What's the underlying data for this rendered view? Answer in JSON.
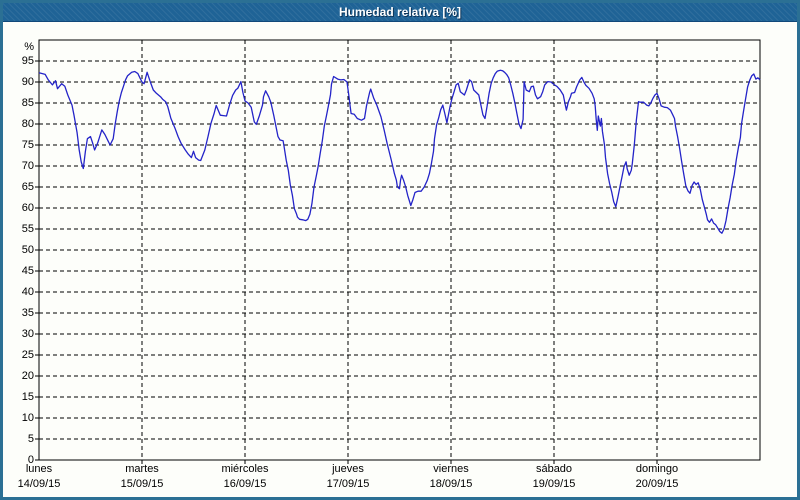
{
  "window": {
    "title": "Humedad relativa [%]"
  },
  "colors": {
    "frame": "#2b7094",
    "titlebar_bg": "#1f6396",
    "titlebar_text": "#ffffff",
    "content_bg": "#fdfefa",
    "grid": "#000000",
    "axis": "#000000",
    "line": "#2424c8",
    "label_text": "#000000"
  },
  "chart_data": {
    "type": "line",
    "title": "Humedad relativa [%]",
    "y_unit_label": "%",
    "ylabel": "Humedad relativa (%)",
    "xlabel": "",
    "ylim": [
      0,
      100
    ],
    "y_ticks": [
      0,
      5,
      10,
      15,
      20,
      25,
      30,
      35,
      40,
      45,
      50,
      55,
      60,
      65,
      70,
      75,
      80,
      85,
      90,
      95
    ],
    "grid": "dashed",
    "legend_position": "none",
    "x_range_days": [
      0,
      7
    ],
    "x_days": [
      {
        "name": "lunes",
        "date": "14/09/15"
      },
      {
        "name": "martes",
        "date": "15/09/15"
      },
      {
        "name": "miércoles",
        "date": "16/09/15"
      },
      {
        "name": "jueves",
        "date": "17/09/15"
      },
      {
        "name": "viernes",
        "date": "18/09/15"
      },
      {
        "name": "sábado",
        "date": "19/09/15"
      },
      {
        "name": "domingo",
        "date": "20/09/15"
      }
    ],
    "series": [
      {
        "name": "Humedad relativa [%]",
        "color": "#2424c8",
        "points_day_value": [
          [
            0,
            92.2
          ],
          [
            0.06,
            91.8
          ],
          [
            0.09,
            90.5
          ],
          [
            0.13,
            89.3
          ],
          [
            0.16,
            90.3
          ],
          [
            0.18,
            88.4
          ],
          [
            0.22,
            89.6
          ],
          [
            0.25,
            89
          ],
          [
            0.28,
            86.9
          ],
          [
            0.32,
            84.5
          ],
          [
            0.34,
            82.1
          ],
          [
            0.37,
            77.9
          ],
          [
            0.39,
            73.8
          ],
          [
            0.41,
            71
          ],
          [
            0.43,
            69.4
          ],
          [
            0.45,
            73.5
          ],
          [
            0.47,
            76.5
          ],
          [
            0.5,
            77
          ],
          [
            0.52,
            75.5
          ],
          [
            0.54,
            73.8
          ],
          [
            0.57,
            75.5
          ],
          [
            0.61,
            78.6
          ],
          [
            0.64,
            77.5
          ],
          [
            0.67,
            76
          ],
          [
            0.69,
            75
          ],
          [
            0.72,
            76.5
          ],
          [
            0.74,
            80
          ],
          [
            0.76,
            83
          ],
          [
            0.78,
            85.5
          ],
          [
            0.8,
            87.5
          ],
          [
            0.82,
            89
          ],
          [
            0.84,
            90.5
          ],
          [
            0.86,
            91.5
          ],
          [
            0.9,
            92.3
          ],
          [
            0.93,
            92.5
          ],
          [
            0.96,
            92
          ],
          [
            0.98,
            91
          ],
          [
            1,
            90
          ],
          [
            1.02,
            89.6
          ],
          [
            1.05,
            92.3
          ],
          [
            1.08,
            90.1
          ],
          [
            1.11,
            88.1
          ],
          [
            1.14,
            87.3
          ],
          [
            1.18,
            86.5
          ],
          [
            1.2,
            85.9
          ],
          [
            1.23,
            85.3
          ],
          [
            1.25,
            84.1
          ],
          [
            1.28,
            81.4
          ],
          [
            1.32,
            79
          ],
          [
            1.35,
            77
          ],
          [
            1.38,
            75.4
          ],
          [
            1.42,
            73.8
          ],
          [
            1.45,
            72.8
          ],
          [
            1.48,
            72
          ],
          [
            1.5,
            73.5
          ],
          [
            1.52,
            72
          ],
          [
            1.55,
            71.4
          ],
          [
            1.57,
            71.3
          ],
          [
            1.61,
            73.8
          ],
          [
            1.64,
            76.9
          ],
          [
            1.67,
            80.2
          ],
          [
            1.7,
            82.5
          ],
          [
            1.72,
            84.4
          ],
          [
            1.76,
            82.1
          ],
          [
            1.79,
            82
          ],
          [
            1.82,
            81.9
          ],
          [
            1.85,
            84.6
          ],
          [
            1.88,
            86.8
          ],
          [
            1.91,
            88.1
          ],
          [
            1.93,
            88.5
          ],
          [
            1.96,
            90.1
          ],
          [
            1.98,
            87.5
          ],
          [
            2,
            85.5
          ],
          [
            2.03,
            85
          ],
          [
            2.06,
            84
          ],
          [
            2.09,
            80.5
          ],
          [
            2.11,
            79.9
          ],
          [
            2.14,
            82
          ],
          [
            2.17,
            84.5
          ],
          [
            2.18,
            86.5
          ],
          [
            2.2,
            87.9
          ],
          [
            2.23,
            86.5
          ],
          [
            2.25,
            85.2
          ],
          [
            2.28,
            82
          ],
          [
            2.3,
            79.5
          ],
          [
            2.32,
            77
          ],
          [
            2.34,
            76.2
          ],
          [
            2.37,
            76
          ],
          [
            2.38,
            74.6
          ],
          [
            2.4,
            71.4
          ],
          [
            2.42,
            69
          ],
          [
            2.44,
            65.5
          ],
          [
            2.46,
            63
          ],
          [
            2.48,
            59.8
          ],
          [
            2.5,
            58.6
          ],
          [
            2.51,
            57.8
          ],
          [
            2.53,
            57.3
          ],
          [
            2.56,
            57.2
          ],
          [
            2.59,
            57
          ],
          [
            2.61,
            57.3
          ],
          [
            2.63,
            58.5
          ],
          [
            2.65,
            61
          ],
          [
            2.67,
            65
          ],
          [
            2.69,
            67.4
          ],
          [
            2.71,
            69.8
          ],
          [
            2.73,
            73
          ],
          [
            2.75,
            76
          ],
          [
            2.77,
            79.5
          ],
          [
            2.79,
            81.9
          ],
          [
            2.81,
            84.3
          ],
          [
            2.83,
            87
          ],
          [
            2.84,
            89.5
          ],
          [
            2.86,
            91.3
          ],
          [
            2.9,
            90.7
          ],
          [
            2.93,
            90.5
          ],
          [
            2.96,
            90.6
          ],
          [
            2.99,
            90
          ],
          [
            3.01,
            86.5
          ],
          [
            3.02,
            84.3
          ],
          [
            3.03,
            82.5
          ],
          [
            3.06,
            82.3
          ],
          [
            3.09,
            81.3
          ],
          [
            3.13,
            80.9
          ],
          [
            3.16,
            81.3
          ],
          [
            3.18,
            84.3
          ],
          [
            3.21,
            87.5
          ],
          [
            3.22,
            88.3
          ],
          [
            3.25,
            86.1
          ],
          [
            3.28,
            84.5
          ],
          [
            3.32,
            81.7
          ],
          [
            3.35,
            78.6
          ],
          [
            3.38,
            75.4
          ],
          [
            3.42,
            71.4
          ],
          [
            3.45,
            68.2
          ],
          [
            3.47,
            66.6
          ],
          [
            3.48,
            65
          ],
          [
            3.5,
            64.6
          ],
          [
            3.51,
            66.6
          ],
          [
            3.52,
            67.8
          ],
          [
            3.54,
            66.6
          ],
          [
            3.56,
            65
          ],
          [
            3.58,
            63
          ],
          [
            3.61,
            60.6
          ],
          [
            3.63,
            62
          ],
          [
            3.65,
            63.7
          ],
          [
            3.68,
            64
          ],
          [
            3.71,
            64
          ],
          [
            3.74,
            65
          ],
          [
            3.77,
            66.6
          ],
          [
            3.79,
            68.2
          ],
          [
            3.81,
            70.6
          ],
          [
            3.83,
            73.5
          ],
          [
            3.84,
            76.5
          ],
          [
            3.86,
            79.8
          ],
          [
            3.88,
            81.4
          ],
          [
            3.9,
            83.4
          ],
          [
            3.92,
            84.5
          ],
          [
            3.94,
            82.5
          ],
          [
            3.96,
            80.3
          ],
          [
            3.99,
            84.1
          ],
          [
            4.01,
            86.1
          ],
          [
            4.03,
            87.7
          ],
          [
            4.05,
            89.3
          ],
          [
            4.07,
            89.7
          ],
          [
            4.09,
            87.7
          ],
          [
            4.13,
            86.9
          ],
          [
            4.15,
            88.1
          ],
          [
            4.18,
            90.5
          ],
          [
            4.2,
            90.1
          ],
          [
            4.22,
            88.1
          ],
          [
            4.25,
            87.4
          ],
          [
            4.27,
            86.9
          ],
          [
            4.29,
            84.5
          ],
          [
            4.31,
            82.2
          ],
          [
            4.33,
            81.3
          ],
          [
            4.35,
            84.1
          ],
          [
            4.37,
            87.3
          ],
          [
            4.39,
            89.7
          ],
          [
            4.41,
            91
          ],
          [
            4.43,
            92
          ],
          [
            4.45,
            92.6
          ],
          [
            4.48,
            92.8
          ],
          [
            4.5,
            92.7
          ],
          [
            4.52,
            92.3
          ],
          [
            4.54,
            91.8
          ],
          [
            4.56,
            91
          ],
          [
            4.58,
            89.3
          ],
          [
            4.6,
            87.3
          ],
          [
            4.62,
            85
          ],
          [
            4.64,
            82.5
          ],
          [
            4.66,
            80
          ],
          [
            4.68,
            78.9
          ],
          [
            4.7,
            81.1
          ],
          [
            4.71,
            90.1
          ],
          [
            4.73,
            88.1
          ],
          [
            4.76,
            87.7
          ],
          [
            4.78,
            88.9
          ],
          [
            4.8,
            89
          ],
          [
            4.82,
            86.9
          ],
          [
            4.84,
            86
          ],
          [
            4.87,
            86.5
          ],
          [
            4.89,
            87.7
          ],
          [
            4.91,
            89.3
          ],
          [
            4.94,
            90.1
          ],
          [
            4.97,
            90
          ],
          [
            5,
            89.4
          ],
          [
            5.03,
            88.9
          ],
          [
            5.06,
            88.1
          ],
          [
            5.09,
            86.9
          ],
          [
            5.11,
            84.5
          ],
          [
            5.12,
            83.3
          ],
          [
            5.14,
            85.3
          ],
          [
            5.16,
            86.5
          ],
          [
            5.17,
            87.3
          ],
          [
            5.2,
            87.5
          ],
          [
            5.22,
            88.9
          ],
          [
            5.25,
            90.5
          ],
          [
            5.27,
            91.1
          ],
          [
            5.29,
            90
          ],
          [
            5.31,
            89.2
          ],
          [
            5.34,
            88.5
          ],
          [
            5.37,
            87.3
          ],
          [
            5.39,
            86
          ],
          [
            5.4,
            84.3
          ],
          [
            5.41,
            81.1
          ],
          [
            5.42,
            78.5
          ],
          [
            5.43,
            81.9
          ],
          [
            5.45,
            79.5
          ],
          [
            5.46,
            81.3
          ],
          [
            5.47,
            78.3
          ],
          [
            5.49,
            75
          ],
          [
            5.5,
            72
          ],
          [
            5.52,
            68.2
          ],
          [
            5.54,
            65.8
          ],
          [
            5.56,
            63.8
          ],
          [
            5.58,
            61.5
          ],
          [
            5.6,
            60.3
          ],
          [
            5.62,
            62.6
          ],
          [
            5.64,
            65
          ],
          [
            5.66,
            67.4
          ],
          [
            5.68,
            69.8
          ],
          [
            5.7,
            71
          ],
          [
            5.71,
            69.4
          ],
          [
            5.73,
            67.8
          ],
          [
            5.75,
            69
          ],
          [
            5.76,
            70.6
          ],
          [
            5.78,
            75
          ],
          [
            5.8,
            81
          ],
          [
            5.82,
            85.3
          ],
          [
            5.84,
            85.2
          ],
          [
            5.87,
            85.2
          ],
          [
            5.9,
            84.5
          ],
          [
            5.92,
            84.3
          ],
          [
            5.94,
            85
          ],
          [
            5.96,
            86.1
          ],
          [
            5.98,
            86.9
          ],
          [
            6,
            87.3
          ],
          [
            6.02,
            86
          ],
          [
            6.04,
            84.3
          ],
          [
            6.07,
            84
          ],
          [
            6.1,
            83.9
          ],
          [
            6.13,
            83.3
          ],
          [
            6.15,
            82.3
          ],
          [
            6.17,
            81.3
          ],
          [
            6.18,
            79.5
          ],
          [
            6.2,
            77
          ],
          [
            6.22,
            74.1
          ],
          [
            6.24,
            71
          ],
          [
            6.26,
            68
          ],
          [
            6.28,
            65.3
          ],
          [
            6.3,
            64.1
          ],
          [
            6.32,
            63.5
          ],
          [
            6.34,
            65.3
          ],
          [
            6.36,
            66.2
          ],
          [
            6.38,
            65.6
          ],
          [
            6.4,
            66
          ],
          [
            6.42,
            64.4
          ],
          [
            6.44,
            62
          ],
          [
            6.46,
            60.2
          ],
          [
            6.48,
            58.4
          ],
          [
            6.49,
            57.2
          ],
          [
            6.51,
            56.6
          ],
          [
            6.53,
            57.4
          ],
          [
            6.55,
            56.4
          ],
          [
            6.57,
            56
          ],
          [
            6.59,
            55.2
          ],
          [
            6.61,
            54.4
          ],
          [
            6.63,
            54
          ],
          [
            6.65,
            55
          ],
          [
            6.67,
            57
          ],
          [
            6.69,
            60
          ],
          [
            6.71,
            62.4
          ],
          [
            6.73,
            65.5
          ],
          [
            6.75,
            68
          ],
          [
            6.77,
            71.5
          ],
          [
            6.79,
            74.4
          ],
          [
            6.81,
            76.8
          ],
          [
            6.82,
            80
          ],
          [
            6.84,
            83
          ],
          [
            6.86,
            86
          ],
          [
            6.88,
            88.8
          ],
          [
            6.9,
            90.4
          ],
          [
            6.92,
            91.5
          ],
          [
            6.94,
            91.9
          ],
          [
            6.96,
            90.7
          ],
          [
            6.98,
            91
          ],
          [
            7,
            90.5
          ]
        ]
      }
    ]
  }
}
